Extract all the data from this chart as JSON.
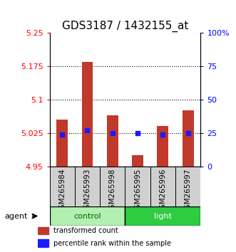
{
  "title": "GDS3187 / 1432155_at",
  "samples": [
    "GSM265984",
    "GSM265993",
    "GSM265998",
    "GSM265995",
    "GSM265996",
    "GSM265997"
  ],
  "groups": [
    "control",
    "control",
    "control",
    "light",
    "light",
    "light"
  ],
  "bar_values": [
    5.055,
    5.185,
    5.065,
    4.975,
    5.04,
    5.075
  ],
  "bar_bottom": 4.95,
  "percentile_values": [
    24,
    27,
    25,
    25,
    24,
    25
  ],
  "percentile_scale_max": 100,
  "ylim": [
    4.95,
    5.25
  ],
  "yticks_left": [
    4.95,
    5.025,
    5.1,
    5.175,
    5.25
  ],
  "yticks_right": [
    0,
    25,
    50,
    75,
    100
  ],
  "ytick_labels_left": [
    "4.95",
    "5.025",
    "5.1",
    "5.175",
    "5.25"
  ],
  "ytick_labels_right": [
    "0",
    "25",
    "50",
    "75",
    "100%"
  ],
  "hlines": [
    5.025,
    5.1,
    5.175
  ],
  "bar_color": "#c0392b",
  "percentile_color": "#1a1aff",
  "control_color": "#b2f0b2",
  "light_color": "#2ecc40",
  "group_label_color_ctrl": "#006400",
  "group_label_color_light": "white",
  "agent_label": "agent",
  "legend_bar_label": "transformed count",
  "legend_pct_label": "percentile rank within the sample",
  "control_label": "control",
  "light_label": "light",
  "title_fontsize": 11,
  "tick_fontsize": 8,
  "sample_fontsize": 7.5
}
